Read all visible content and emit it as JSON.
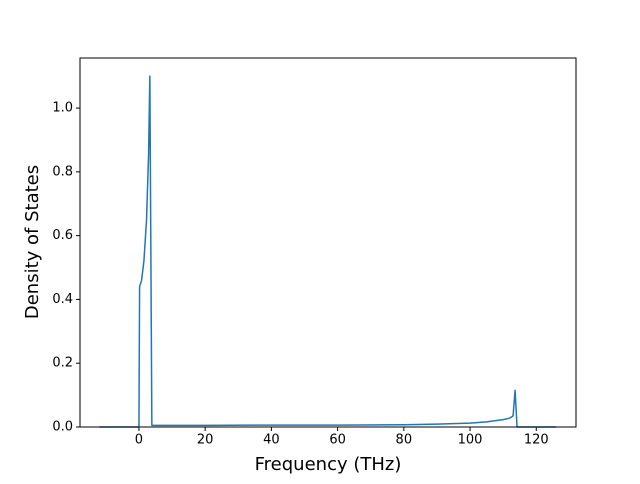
{
  "chart_data": {
    "type": "line",
    "xlabel": "Frequency (THz)",
    "ylabel": "Density of States",
    "x": [
      -12,
      0,
      0.2,
      0.8,
      1.5,
      2.3,
      2.9,
      3.3,
      3.9,
      20,
      40,
      60,
      80,
      90,
      100,
      105,
      110,
      112,
      113,
      113.6,
      114.2,
      120,
      126
    ],
    "series": [
      {
        "color": "#1f77b4",
        "values": [
          0,
          0,
          0.44,
          0.46,
          0.52,
          0.65,
          0.85,
          1.1,
          0.005,
          0.005,
          0.006,
          0.006,
          0.007,
          0.009,
          0.012,
          0.016,
          0.023,
          0.028,
          0.035,
          0.115,
          0,
          0,
          0
        ]
      }
    ],
    "xlim": [
      -17.8,
      132
    ],
    "ylim": [
      0,
      1.157
    ],
    "xticks": [
      0,
      20,
      40,
      60,
      80,
      100,
      120
    ],
    "yticks": [
      {
        "value": 0,
        "label": "0.0"
      },
      0.2,
      0.4,
      0.6,
      0.8,
      {
        "value": 1,
        "label": "1.0"
      }
    ],
    "grid": false
  }
}
